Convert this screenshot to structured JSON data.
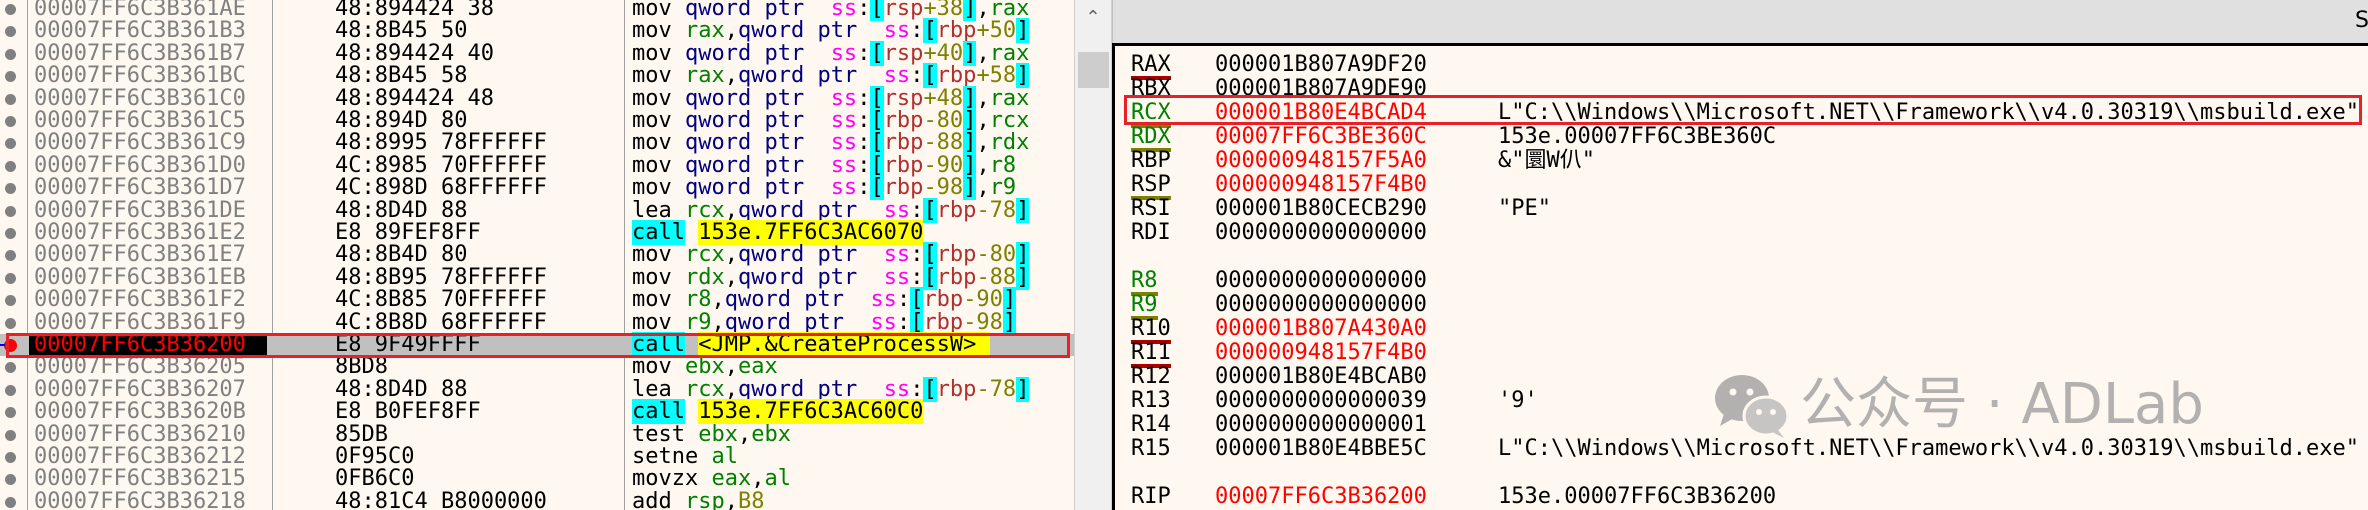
{
  "disassembly": {
    "highlight_index": 15,
    "rows": [
      {
        "address": "00007FF6C3B361AE",
        "bytes": "48:894424 38",
        "tokens": [
          [
            "mov ",
            "mn"
          ],
          [
            "qword ptr  ",
            "size"
          ],
          [
            "ss",
            "seg"
          ],
          [
            ":",
            "p"
          ],
          [
            "[",
            "br"
          ],
          [
            "rsp",
            "base"
          ],
          [
            "+38",
            "off"
          ],
          [
            "]",
            "br"
          ],
          [
            ",",
            "p"
          ],
          [
            "rax",
            "reg"
          ]
        ]
      },
      {
        "address": "00007FF6C3B361B3",
        "bytes": "48:8B45 50",
        "tokens": [
          [
            "mov ",
            "mn"
          ],
          [
            "rax",
            "reg"
          ],
          [
            ",",
            "p"
          ],
          [
            "qword ptr  ",
            "size"
          ],
          [
            "ss",
            "seg"
          ],
          [
            ":",
            "p"
          ],
          [
            "[",
            "br"
          ],
          [
            "rbp",
            "base"
          ],
          [
            "+50",
            "off"
          ],
          [
            "]",
            "br"
          ]
        ]
      },
      {
        "address": "00007FF6C3B361B7",
        "bytes": "48:894424 40",
        "tokens": [
          [
            "mov ",
            "mn"
          ],
          [
            "qword ptr  ",
            "size"
          ],
          [
            "ss",
            "seg"
          ],
          [
            ":",
            "p"
          ],
          [
            "[",
            "br"
          ],
          [
            "rsp",
            "base"
          ],
          [
            "+40",
            "off"
          ],
          [
            "]",
            "br"
          ],
          [
            ",",
            "p"
          ],
          [
            "rax",
            "reg"
          ]
        ]
      },
      {
        "address": "00007FF6C3B361BC",
        "bytes": "48:8B45 58",
        "tokens": [
          [
            "mov ",
            "mn"
          ],
          [
            "rax",
            "reg"
          ],
          [
            ",",
            "p"
          ],
          [
            "qword ptr  ",
            "size"
          ],
          [
            "ss",
            "seg"
          ],
          [
            ":",
            "p"
          ],
          [
            "[",
            "br"
          ],
          [
            "rbp",
            "base"
          ],
          [
            "+58",
            "off"
          ],
          [
            "]",
            "br"
          ]
        ]
      },
      {
        "address": "00007FF6C3B361C0",
        "bytes": "48:894424 48",
        "tokens": [
          [
            "mov ",
            "mn"
          ],
          [
            "qword ptr  ",
            "size"
          ],
          [
            "ss",
            "seg"
          ],
          [
            ":",
            "p"
          ],
          [
            "[",
            "br"
          ],
          [
            "rsp",
            "base"
          ],
          [
            "+48",
            "off"
          ],
          [
            "]",
            "br"
          ],
          [
            ",",
            "p"
          ],
          [
            "rax",
            "reg"
          ]
        ]
      },
      {
        "address": "00007FF6C3B361C5",
        "bytes": "48:894D 80",
        "tokens": [
          [
            "mov ",
            "mn"
          ],
          [
            "qword ptr  ",
            "size"
          ],
          [
            "ss",
            "seg"
          ],
          [
            ":",
            "p"
          ],
          [
            "[",
            "br"
          ],
          [
            "rbp",
            "base"
          ],
          [
            "-80",
            "off"
          ],
          [
            "]",
            "br"
          ],
          [
            ",",
            "p"
          ],
          [
            "rcx",
            "reg"
          ]
        ]
      },
      {
        "address": "00007FF6C3B361C9",
        "bytes": "48:8995 78FFFFFF",
        "tokens": [
          [
            "mov ",
            "mn"
          ],
          [
            "qword ptr  ",
            "size"
          ],
          [
            "ss",
            "seg"
          ],
          [
            ":",
            "p"
          ],
          [
            "[",
            "br"
          ],
          [
            "rbp",
            "base"
          ],
          [
            "-88",
            "off"
          ],
          [
            "]",
            "br"
          ],
          [
            ",",
            "p"
          ],
          [
            "rdx",
            "reg"
          ]
        ]
      },
      {
        "address": "00007FF6C3B361D0",
        "bytes": "4C:8985 70FFFFFF",
        "tokens": [
          [
            "mov ",
            "mn"
          ],
          [
            "qword ptr  ",
            "size"
          ],
          [
            "ss",
            "seg"
          ],
          [
            ":",
            "p"
          ],
          [
            "[",
            "br"
          ],
          [
            "rbp",
            "base"
          ],
          [
            "-90",
            "off"
          ],
          [
            "]",
            "br"
          ],
          [
            ",",
            "p"
          ],
          [
            "r8",
            "reg"
          ]
        ]
      },
      {
        "address": "00007FF6C3B361D7",
        "bytes": "4C:898D 68FFFFFF",
        "tokens": [
          [
            "mov ",
            "mn"
          ],
          [
            "qword ptr  ",
            "size"
          ],
          [
            "ss",
            "seg"
          ],
          [
            ":",
            "p"
          ],
          [
            "[",
            "br"
          ],
          [
            "rbp",
            "base"
          ],
          [
            "-98",
            "off"
          ],
          [
            "]",
            "br"
          ],
          [
            ",",
            "p"
          ],
          [
            "r9",
            "reg"
          ]
        ]
      },
      {
        "address": "00007FF6C3B361DE",
        "bytes": "48:8D4D 88",
        "tokens": [
          [
            "lea ",
            "mn"
          ],
          [
            "rcx",
            "reg"
          ],
          [
            ",",
            "p"
          ],
          [
            "qword ptr  ",
            "size"
          ],
          [
            "ss",
            "seg"
          ],
          [
            ":",
            "p"
          ],
          [
            "[",
            "br"
          ],
          [
            "rbp",
            "base"
          ],
          [
            "-78",
            "off"
          ],
          [
            "]",
            "br"
          ]
        ]
      },
      {
        "address": "00007FF6C3B361E2",
        "bytes": "E8 89FEF8FF",
        "tokens": [
          [
            "call",
            "call"
          ],
          [
            " ",
            "p"
          ],
          [
            "153e.7FF6C3AC6070",
            "target"
          ]
        ]
      },
      {
        "address": "00007FF6C3B361E7",
        "bytes": "48:8B4D 80",
        "tokens": [
          [
            "mov ",
            "mn"
          ],
          [
            "rcx",
            "reg"
          ],
          [
            ",",
            "p"
          ],
          [
            "qword ptr  ",
            "size"
          ],
          [
            "ss",
            "seg"
          ],
          [
            ":",
            "p"
          ],
          [
            "[",
            "br"
          ],
          [
            "rbp",
            "base"
          ],
          [
            "-80",
            "off"
          ],
          [
            "]",
            "br"
          ]
        ]
      },
      {
        "address": "00007FF6C3B361EB",
        "bytes": "48:8B95 78FFFFFF",
        "tokens": [
          [
            "mov ",
            "mn"
          ],
          [
            "rdx",
            "reg"
          ],
          [
            ",",
            "p"
          ],
          [
            "qword ptr  ",
            "size"
          ],
          [
            "ss",
            "seg"
          ],
          [
            ":",
            "p"
          ],
          [
            "[",
            "br"
          ],
          [
            "rbp",
            "base"
          ],
          [
            "-88",
            "off"
          ],
          [
            "]",
            "br"
          ]
        ]
      },
      {
        "address": "00007FF6C3B361F2",
        "bytes": "4C:8B85 70FFFFFF",
        "tokens": [
          [
            "mov ",
            "mn"
          ],
          [
            "r8",
            "reg"
          ],
          [
            ",",
            "p"
          ],
          [
            "qword ptr  ",
            "size"
          ],
          [
            "ss",
            "seg"
          ],
          [
            ":",
            "p"
          ],
          [
            "[",
            "br"
          ],
          [
            "rbp",
            "base"
          ],
          [
            "-90",
            "off"
          ],
          [
            "]",
            "br"
          ]
        ]
      },
      {
        "address": "00007FF6C3B361F9",
        "bytes": "4C:8B8D 68FFFFFF",
        "tokens": [
          [
            "mov ",
            "mn"
          ],
          [
            "r9",
            "reg"
          ],
          [
            ",",
            "p"
          ],
          [
            "qword ptr  ",
            "size"
          ],
          [
            "ss",
            "seg"
          ],
          [
            ":",
            "p"
          ],
          [
            "[",
            "br"
          ],
          [
            "rbp",
            "base"
          ],
          [
            "-98",
            "off"
          ],
          [
            "]",
            "br"
          ]
        ]
      },
      {
        "address": "00007FF6C3B36200",
        "bytes": "E8 9F49FFFF",
        "tokens": [
          [
            "call",
            "call"
          ],
          [
            " ",
            "p"
          ],
          [
            "<JMP.&CreateProcessW> ",
            "target"
          ]
        ]
      },
      {
        "address": "00007FF6C3B36205",
        "bytes": "8BD8",
        "tokens": [
          [
            "mov ",
            "mn"
          ],
          [
            "ebx",
            "reg"
          ],
          [
            ",",
            "p"
          ],
          [
            "eax",
            "reg"
          ]
        ]
      },
      {
        "address": "00007FF6C3B36207",
        "bytes": "48:8D4D 88",
        "tokens": [
          [
            "lea ",
            "mn"
          ],
          [
            "rcx",
            "reg"
          ],
          [
            ",",
            "p"
          ],
          [
            "qword ptr  ",
            "size"
          ],
          [
            "ss",
            "seg"
          ],
          [
            ":",
            "p"
          ],
          [
            "[",
            "br"
          ],
          [
            "rbp",
            "base"
          ],
          [
            "-78",
            "off"
          ],
          [
            "]",
            "br"
          ]
        ]
      },
      {
        "address": "00007FF6C3B3620B",
        "bytes": "E8 B0FEF8FF",
        "tokens": [
          [
            "call",
            "call"
          ],
          [
            " ",
            "p"
          ],
          [
            "153e.7FF6C3AC60C0",
            "target"
          ]
        ]
      },
      {
        "address": "00007FF6C3B36210",
        "bytes": "85DB",
        "tokens": [
          [
            "test ",
            "mn"
          ],
          [
            "ebx",
            "reg"
          ],
          [
            ",",
            "p"
          ],
          [
            "ebx",
            "reg"
          ]
        ]
      },
      {
        "address": "00007FF6C3B36212",
        "bytes": "0F95C0",
        "tokens": [
          [
            "setne ",
            "mn"
          ],
          [
            "al",
            "reg"
          ]
        ]
      },
      {
        "address": "00007FF6C3B36215",
        "bytes": "0FB6C0",
        "tokens": [
          [
            "movzx ",
            "mn"
          ],
          [
            "eax",
            "reg"
          ],
          [
            ",",
            "p"
          ],
          [
            "al",
            "reg"
          ]
        ]
      },
      {
        "address": "00007FF6C3B36218",
        "bytes": "48:81C4 B8000000",
        "tokens": [
          [
            "add ",
            "mn"
          ],
          [
            "rsp",
            "reg"
          ],
          [
            ",",
            "p"
          ],
          [
            "B8",
            "off"
          ]
        ]
      }
    ]
  },
  "registers_panel": {
    "header_title": "Sh",
    "rows": [
      {
        "slot": 0,
        "name": "RAX",
        "value": "000001B807A9DF20",
        "comment": "",
        "changed": false,
        "name_color": "#000000",
        "underline": "#aa0000"
      },
      {
        "slot": 1,
        "name": "RBX",
        "value": "000001B807A9DE90",
        "comment": "",
        "changed": false,
        "name_color": "#000000",
        "underline": ""
      },
      {
        "slot": 2,
        "name": "RCX",
        "value": "000001B80E4BCAD4",
        "comment": "L\"C:\\\\Windows\\\\Microsoft.NET\\\\Framework\\\\v4.0.30319\\\\msbuild.exe\"",
        "changed": true,
        "name_color": "#008000",
        "underline": "#808000"
      },
      {
        "slot": 3,
        "name": "RDX",
        "value": "00007FF6C3BE360C",
        "comment": "153e.00007FF6C3BE360C",
        "changed": true,
        "name_color": "#008000",
        "underline": "#808000"
      },
      {
        "slot": 4,
        "name": "RBP",
        "value": "000000948157F5A0",
        "comment": "&\"圜W仈\"",
        "changed": true,
        "name_color": "#000000",
        "underline": ""
      },
      {
        "slot": 5,
        "name": "RSP",
        "value": "000000948157F4B0",
        "comment": "",
        "changed": true,
        "name_color": "#000000",
        "underline": "#808000"
      },
      {
        "slot": 6,
        "name": "RSI",
        "value": "000001B80CECB290",
        "comment": "\"PE\"",
        "changed": false,
        "name_color": "#000000",
        "underline": ""
      },
      {
        "slot": 7,
        "name": "RDI",
        "value": "0000000000000000",
        "comment": "",
        "changed": false,
        "name_color": "#000000",
        "underline": ""
      },
      {
        "slot": 9,
        "name": "R8",
        "value": "0000000000000000",
        "comment": "",
        "changed": false,
        "name_color": "#008000",
        "underline": "#808000"
      },
      {
        "slot": 10,
        "name": "R9",
        "value": "0000000000000000",
        "comment": "",
        "changed": false,
        "name_color": "#008000",
        "underline": "#808000"
      },
      {
        "slot": 11,
        "name": "R10",
        "value": "000001B807A430A0",
        "comment": "",
        "changed": true,
        "name_color": "#000000",
        "underline": "#aa0000"
      },
      {
        "slot": 12,
        "name": "R11",
        "value": "000000948157F4B0",
        "comment": "",
        "changed": true,
        "name_color": "#000000",
        "underline": "#aa0000"
      },
      {
        "slot": 13,
        "name": "R12",
        "value": "000001B80E4BCAB0",
        "comment": "",
        "changed": false,
        "name_color": "#000000",
        "underline": ""
      },
      {
        "slot": 14,
        "name": "R13",
        "value": "0000000000000039",
        "comment": "'9'",
        "changed": false,
        "name_color": "#000000",
        "underline": ""
      },
      {
        "slot": 15,
        "name": "R14",
        "value": "0000000000000001",
        "comment": "",
        "changed": false,
        "name_color": "#000000",
        "underline": ""
      },
      {
        "slot": 16,
        "name": "R15",
        "value": "000001B80E4BBE5C",
        "comment": "L\"C:\\\\Windows\\\\Microsoft.NET\\\\Framework\\\\v4.0.30319\\\\msbuild.exe\"",
        "changed": false,
        "name_color": "#000000",
        "underline": ""
      },
      {
        "slot": 18,
        "name": "RIP",
        "value": "00007FF6C3B36200",
        "comment": "153e.00007FF6C3B36200",
        "changed": true,
        "name_color": "#000000",
        "underline": ""
      }
    ]
  },
  "watermark": {
    "text": "公众号 · ADLab",
    "icon": "wechat-icon"
  },
  "colors": {
    "highlight_box": "#e8202a",
    "background": "#fff8f0",
    "changed_value": "#ff0000",
    "bracket_bg": "#00ffff",
    "call_target_bg": "#ffff00"
  }
}
